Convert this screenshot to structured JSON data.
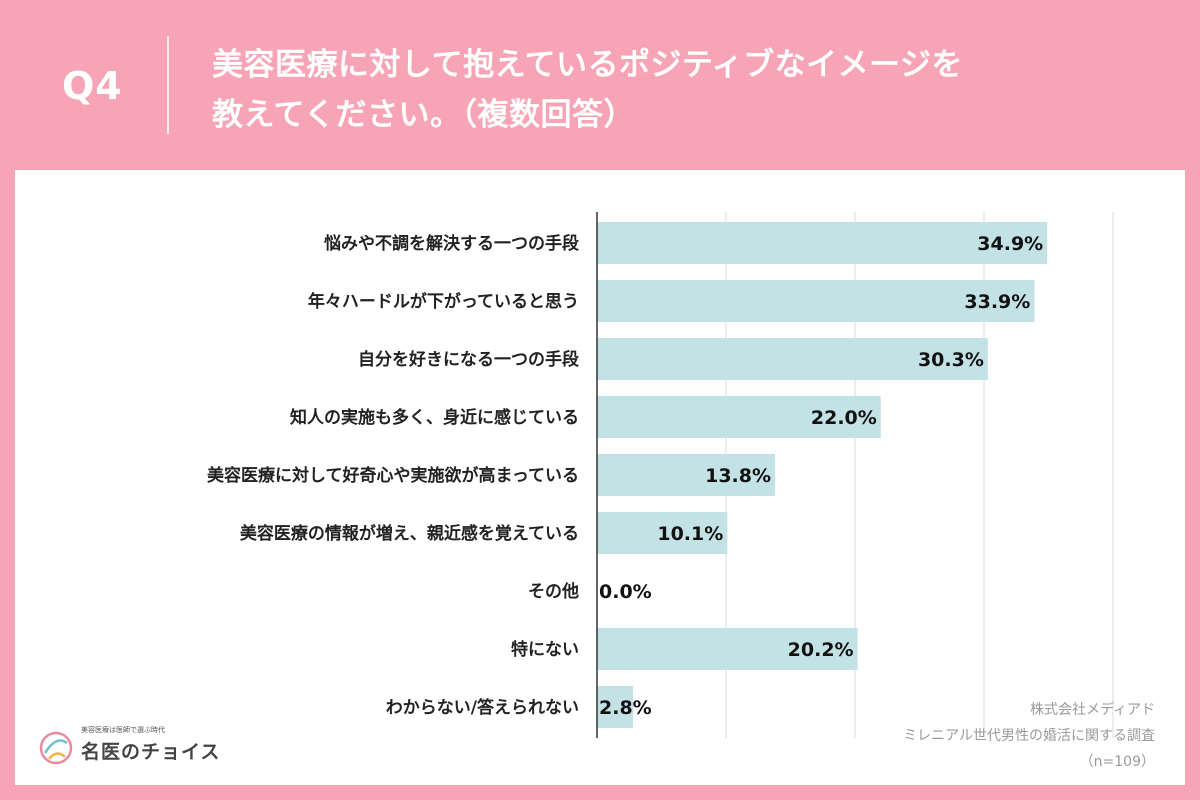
{
  "header": {
    "q_number": "Q4",
    "title_line1": "美容医療に対して抱えているポジティブなイメージを",
    "title_line2": "教えてください。（複数回答）"
  },
  "chart_data": {
    "type": "bar",
    "orientation": "horizontal",
    "categories": [
      "悩みや不調を解決する一つの手段",
      "年々ハードルが下がっていると思う",
      "自分を好きになる一つの手段",
      "知人の実施も多く、身近に感じている",
      "美容医療に対して好奇心や実施欲が高まっている",
      "美容医療の情報が増え、親近感を覚えている",
      "その他",
      "特にない",
      "わからない/答えられない"
    ],
    "values": [
      34.9,
      33.9,
      30.3,
      22.0,
      13.8,
      10.1,
      0.0,
      20.2,
      2.8
    ],
    "value_labels": [
      "34.9%",
      "33.9%",
      "30.3%",
      "22.0%",
      "13.8%",
      "10.1%",
      "0.0%",
      "20.2%",
      "2.8%"
    ],
    "xlim": [
      0,
      40
    ],
    "grid": true,
    "bar_color": "#c3e2e6"
  },
  "source": {
    "company": "株式会社メディアド",
    "survey": "ミレニアル世代男性の婚活に関する調査",
    "sample": "（n=109）"
  },
  "brand": {
    "tagline": "美容医療は医師で選ぶ時代",
    "name": "名医のチョイス",
    "logo_icon": "flower-logo-icon"
  }
}
